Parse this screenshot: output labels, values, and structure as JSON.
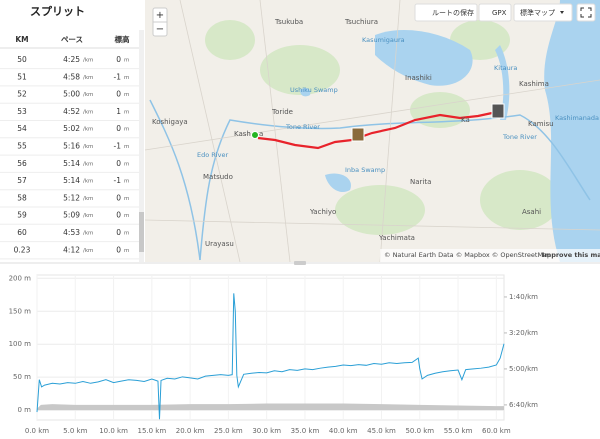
{
  "splits": {
    "title": "スプリット",
    "headers": [
      "KM",
      "ペース",
      "標高"
    ],
    "rows": [
      {
        "km": "50",
        "pace": "4:25",
        "pace_unit": "/km",
        "elev": "0",
        "elev_unit": "m"
      },
      {
        "km": "51",
        "pace": "4:58",
        "pace_unit": "/km",
        "elev": "-1",
        "elev_unit": "m"
      },
      {
        "km": "52",
        "pace": "5:00",
        "pace_unit": "/km",
        "elev": "0",
        "elev_unit": "m"
      },
      {
        "km": "53",
        "pace": "4:52",
        "pace_unit": "/km",
        "elev": "1",
        "elev_unit": "m"
      },
      {
        "km": "54",
        "pace": "5:02",
        "pace_unit": "/km",
        "elev": "0",
        "elev_unit": "m"
      },
      {
        "km": "55",
        "pace": "5:16",
        "pace_unit": "/km",
        "elev": "-1",
        "elev_unit": "m"
      },
      {
        "km": "56",
        "pace": "5:14",
        "pace_unit": "/km",
        "elev": "0",
        "elev_unit": "m"
      },
      {
        "km": "57",
        "pace": "5:14",
        "pace_unit": "/km",
        "elev": "-1",
        "elev_unit": "m"
      },
      {
        "km": "58",
        "pace": "5:12",
        "pace_unit": "/km",
        "elev": "0",
        "elev_unit": "m"
      },
      {
        "km": "59",
        "pace": "5:09",
        "pace_unit": "/km",
        "elev": "0",
        "elev_unit": "m"
      },
      {
        "km": "60",
        "pace": "4:53",
        "pace_unit": "/km",
        "elev": "0",
        "elev_unit": "m"
      },
      {
        "km": "0.23",
        "pace": "4:12",
        "pace_unit": "/km",
        "elev": "0",
        "elev_unit": "m"
      }
    ]
  },
  "map": {
    "buttons": [
      "ルートの保存",
      "GPX",
      "標準マップ"
    ],
    "zoom": [
      "+",
      "−"
    ],
    "labels": [
      "Tsukuba",
      "Tsuchiura",
      "Kasumigaura",
      "Ushiku Swamp",
      "Inashiki",
      "Kitaura",
      "Kashima",
      "Koshigaya",
      "Toride",
      "Kash",
      "a",
      "Tone River",
      "Edo River",
      "Matsudo",
      "Inba Swamp",
      "Narita",
      "Yachiyo",
      "Urayasu",
      "Yachimata",
      "Ka",
      "Kamisu",
      "Kashimanada",
      "Tone River",
      "Asahi"
    ],
    "attribution": "© Natural Earth Data © Mapbox © OpenStreetMap",
    "improve": "Improve this map"
  },
  "chart_data": {
    "type": "line",
    "xlim": [
      0,
      61
    ],
    "xticks": [
      {
        "value": 0,
        "label": "0.0 km"
      },
      {
        "value": 5,
        "label": "5.0 km"
      },
      {
        "value": 10,
        "label": "10.0 km"
      },
      {
        "value": 15,
        "label": "15.0 km"
      },
      {
        "value": 20,
        "label": "20.0 km"
      },
      {
        "value": 25,
        "label": "25.0 km"
      },
      {
        "value": 30,
        "label": "30.0 km"
      },
      {
        "value": 35,
        "label": "35.0 km"
      },
      {
        "value": 40,
        "label": "40.0 km"
      },
      {
        "value": 45,
        "label": "45.0 km"
      },
      {
        "value": 50,
        "label": "50.0 km"
      },
      {
        "value": 55,
        "label": "55.0 km"
      },
      {
        "value": 60,
        "label": "60.0 km"
      }
    ],
    "ylim": [
      -15,
      205
    ],
    "yticks": [
      {
        "value": 0,
        "label": "0 m"
      },
      {
        "value": 50,
        "label": "50 m"
      },
      {
        "value": 100,
        "label": "100 m"
      },
      {
        "value": 150,
        "label": "150 m"
      },
      {
        "value": 200,
        "label": "200 m"
      }
    ],
    "y2lim": [
      442,
      39
    ],
    "y2ticks": [
      {
        "value": 400,
        "label": "6:40/km"
      },
      {
        "value": 300,
        "label": "5:00/km"
      },
      {
        "value": 200,
        "label": "3:20/km"
      },
      {
        "value": 100,
        "label": "1:40/km"
      }
    ],
    "grid": true,
    "series": [
      {
        "type": "area",
        "color": "#c8c8c8",
        "x": [
          0,
          0.5,
          2,
          5,
          10,
          15,
          20,
          25,
          30,
          35,
          40,
          45,
          50,
          55,
          60,
          61
        ],
        "values": [
          2,
          8,
          9,
          8,
          8,
          8,
          9,
          9,
          10,
          10,
          10,
          9,
          8,
          7,
          6,
          6
        ]
      },
      {
        "type": "line",
        "color": "#2a9fd6",
        "axis": "y2",
        "x": [
          0,
          0.3,
          0.6,
          1,
          2,
          3,
          4,
          5,
          6,
          7,
          8,
          9,
          10,
          11,
          12,
          13,
          14,
          15,
          15.8,
          16,
          16.2,
          17,
          18,
          19,
          20,
          21,
          22,
          23,
          24,
          25,
          25.5,
          25.7,
          25.9,
          26.1,
          26.3,
          27,
          28,
          29,
          30,
          31,
          32,
          33,
          34,
          35,
          36,
          37,
          38,
          39,
          40,
          41,
          42,
          43,
          44,
          45,
          46,
          47,
          48,
          49,
          49.8,
          50,
          50.3,
          51,
          52,
          53,
          54,
          55,
          55.5,
          56,
          57,
          58,
          59,
          60,
          60.5,
          61
        ],
        "values": [
          420,
          330,
          350,
          345,
          340,
          342,
          338,
          340,
          335,
          340,
          336,
          330,
          338,
          334,
          330,
          332,
          335,
          328,
          334,
          440,
          332,
          326,
          328,
          322,
          325,
          328,
          320,
          318,
          316,
          318,
          316,
          90,
          140,
          318,
          350,
          315,
          312,
          310,
          311,
          305,
          308,
          302,
          304,
          300,
          302,
          298,
          295,
          293,
          289,
          291,
          288,
          290,
          285,
          287,
          283,
          285,
          283,
          282,
          270,
          300,
          328,
          318,
          312,
          308,
          305,
          303,
          330,
          302,
          300,
          298,
          295,
          289,
          270,
          230
        ]
      }
    ]
  }
}
